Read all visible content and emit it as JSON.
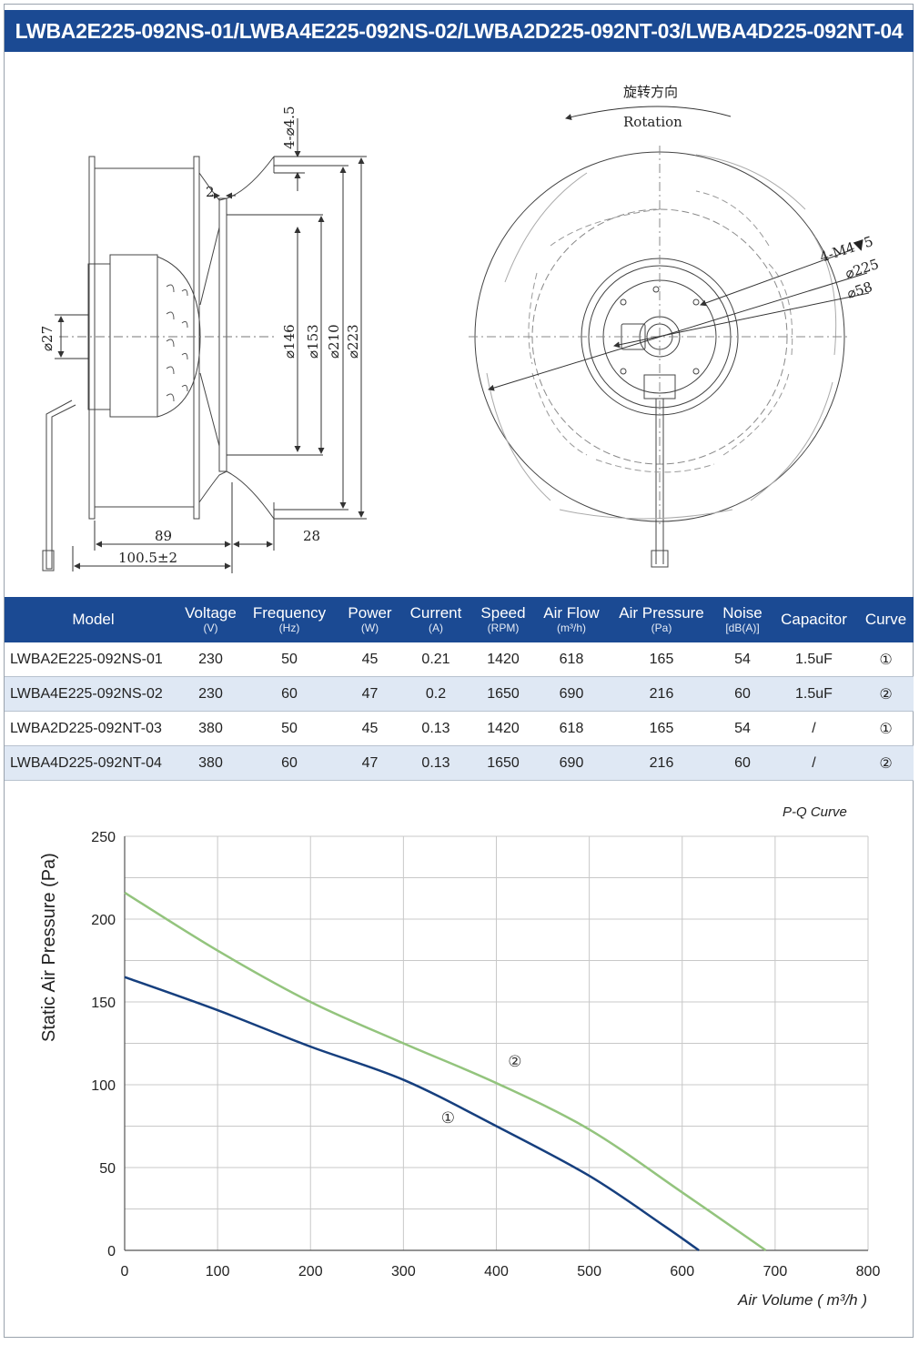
{
  "title": "LWBA2E225-092NS-01/LWBA4E225-092NS-02/LWBA2D225-092NT-03/LWBA4D225-092NT-04",
  "drawing": {
    "rotation_cn": "旋转方向",
    "rotation_en": "Rotation",
    "dims_side": {
      "holes": "4-⌀4.5",
      "gap": "2",
      "d146": "⌀146",
      "d153": "⌀153",
      "d210": "⌀210",
      "d223": "⌀223",
      "d27": "⌀27",
      "len89": "89",
      "len100": "100.5±2",
      "len28": "28"
    },
    "dims_front": {
      "screws": "4-M4▼5",
      "d225": "⌀225",
      "d58": "⌀58"
    }
  },
  "table": {
    "headers": [
      {
        "label": "Model",
        "unit": ""
      },
      {
        "label": "Voltage",
        "unit": "(V)"
      },
      {
        "label": "Frequency",
        "unit": "(Hz)"
      },
      {
        "label": "Power",
        "unit": "(W)"
      },
      {
        "label": "Current",
        "unit": "(A)"
      },
      {
        "label": "Speed",
        "unit": "(RPM)"
      },
      {
        "label": "Air Flow",
        "unit": "(m³/h)"
      },
      {
        "label": "Air Pressure",
        "unit": "(Pa)"
      },
      {
        "label": "Noise",
        "unit": "[dB(A)]"
      },
      {
        "label": "Capacitor",
        "unit": ""
      },
      {
        "label": "Curve",
        "unit": ""
      }
    ],
    "rows": [
      [
        "LWBA2E225-092NS-01",
        "230",
        "50",
        "45",
        "0.21",
        "1420",
        "618",
        "165",
        "54",
        "1.5uF",
        "①"
      ],
      [
        "LWBA4E225-092NS-02",
        "230",
        "60",
        "47",
        "0.2",
        "1650",
        "690",
        "216",
        "60",
        "1.5uF",
        "②"
      ],
      [
        "LWBA2D225-092NT-03",
        "380",
        "50",
        "45",
        "0.13",
        "1420",
        "618",
        "165",
        "54",
        "/",
        "①"
      ],
      [
        "LWBA4D225-092NT-04",
        "380",
        "60",
        "47",
        "0.13",
        "1650",
        "690",
        "216",
        "60",
        "/",
        "②"
      ]
    ]
  },
  "chart_data": {
    "type": "line",
    "title": "P-Q Curve",
    "xlabel": "Air Volume ( m³/h )",
    "ylabel": "Static Air Pressure  (Pa)",
    "xlim": [
      0,
      800
    ],
    "ylim": [
      0,
      250
    ],
    "x_ticks": [
      "0",
      "100",
      "200",
      "300",
      "400",
      "500",
      "600",
      "700",
      "800"
    ],
    "y_ticks": [
      "0",
      "50",
      "100",
      "150",
      "200",
      "250"
    ],
    "grid": true,
    "series": [
      {
        "name": "①",
        "color": "#163f7e",
        "points": [
          [
            0,
            165
          ],
          [
            100,
            145
          ],
          [
            200,
            123
          ],
          [
            300,
            103
          ],
          [
            400,
            75
          ],
          [
            500,
            45
          ],
          [
            580,
            15
          ],
          [
            618,
            0
          ]
        ],
        "label_at": [
          348,
          77
        ]
      },
      {
        "name": "②",
        "color": "#93c47d",
        "points": [
          [
            0,
            216
          ],
          [
            100,
            181
          ],
          [
            200,
            150
          ],
          [
            300,
            125
          ],
          [
            400,
            101
          ],
          [
            500,
            73
          ],
          [
            600,
            35
          ],
          [
            690,
            0
          ]
        ],
        "label_at": [
          420,
          111
        ]
      }
    ]
  }
}
